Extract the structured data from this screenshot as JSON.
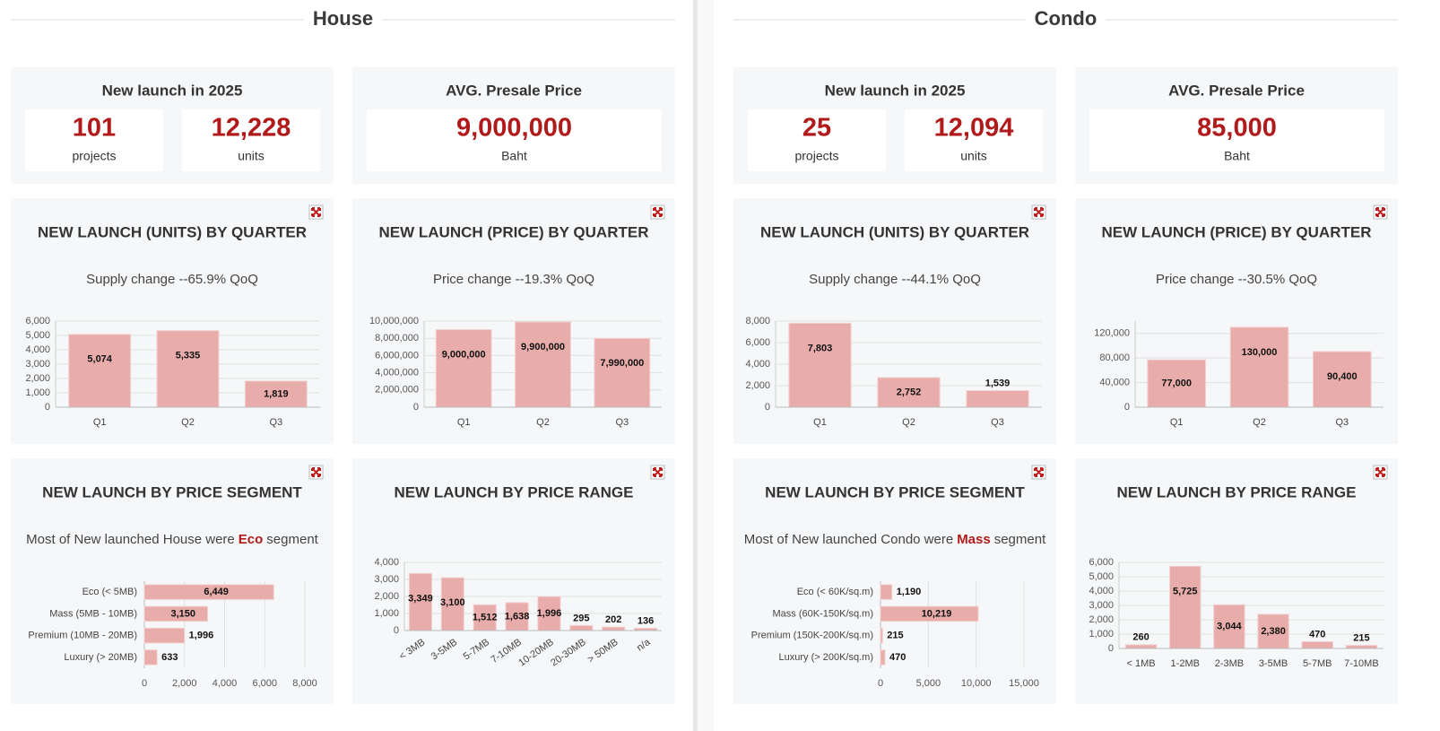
{
  "sections": [
    {
      "title": "House",
      "kpis": [
        {
          "title": "New launch in 2025",
          "items": [
            {
              "value": "101",
              "label": "projects"
            },
            {
              "value": "12,228",
              "label": "units"
            }
          ]
        },
        {
          "title": "AVG. Presale Price",
          "items": [
            {
              "value": "9,000,000",
              "label": "Baht"
            }
          ]
        }
      ]
    },
    {
      "title": "Condo",
      "kpis": [
        {
          "title": "New launch in 2025",
          "items": [
            {
              "value": "25",
              "label": "projects"
            },
            {
              "value": "12,094",
              "label": "units"
            }
          ]
        },
        {
          "title": "AVG. Presale Price",
          "items": [
            {
              "value": "85,000",
              "label": "Baht"
            }
          ]
        }
      ]
    }
  ],
  "chart_data": [
    {
      "type": "bar",
      "title": "NEW LAUNCH (UNITS) BY QUARTER",
      "subtitle": "Supply change --65.9% QoQ",
      "color": "#e8adab",
      "categories": [
        "Q1",
        "Q2",
        "Q3"
      ],
      "values": [
        5074,
        5335,
        1819
      ],
      "value_labels": [
        "5,074",
        "5,335",
        "1,819"
      ],
      "ylim": [
        0,
        6000
      ],
      "yticks": [
        0,
        {
          "value": 1000,
          "label": "1,000"
        },
        {
          "value": 2000,
          "label": "2,000"
        },
        {
          "value": 3000,
          "label": "3,000"
        },
        {
          "value": 4000,
          "label": "4,000"
        },
        {
          "value": 5000,
          "label": "5,000"
        },
        {
          "value": 6000,
          "label": "6,000"
        }
      ],
      "grid": true
    },
    {
      "type": "bar",
      "title": "NEW LAUNCH (PRICE) BY QUARTER",
      "subtitle": "Price change --19.3% QoQ",
      "color": "#e8adab",
      "categories": [
        "Q1",
        "Q2",
        "Q3"
      ],
      "values": [
        9000000,
        9900000,
        7990000
      ],
      "value_labels": [
        "9,000,000",
        "9,900,000",
        "7,990,000"
      ],
      "ylim": [
        0,
        10000000
      ],
      "yticks": [
        0,
        {
          "value": 2000000,
          "label": "2,000,000"
        },
        {
          "value": 4000000,
          "label": "4,000,000"
        },
        {
          "value": 6000000,
          "label": "6,000,000"
        },
        {
          "value": 8000000,
          "label": "8,000,000"
        },
        {
          "value": 10000000,
          "label": "10,000,000"
        }
      ],
      "grid": true
    },
    {
      "type": "hbar",
      "title": "NEW LAUNCH BY PRICE SEGMENT",
      "subtitle": "Most of New launched House were",
      "subtitle_highlight": "Eco",
      "subtitle_end": "segment",
      "color": "#e8adab",
      "categories": [
        "Eco (< 5MB)",
        "Mass (5MB - 10MB)",
        "Premium (10MB - 20MB)",
        "Luxury (> 20MB)"
      ],
      "values": [
        6449,
        3150,
        1996,
        633
      ],
      "value_labels": [
        "6,449",
        "3,150",
        "1,996",
        "633"
      ],
      "xlim": [
        0,
        8000
      ],
      "xticks": [
        0,
        {
          "value": 2000,
          "label": "2,000"
        },
        {
          "value": 4000,
          "label": "4,000"
        },
        {
          "value": 6000,
          "label": "6,000"
        },
        {
          "value": 8000,
          "label": "8,000"
        }
      ],
      "grid": true
    },
    {
      "type": "bar",
      "title": "NEW LAUNCH BY PRICE RANGE",
      "color": "#e8adab",
      "categories": [
        "< 3MB",
        "3-5MB",
        "5-7MB",
        "7-10MB",
        "10-20MB",
        "20-30MB",
        "> 50MB",
        "n/a"
      ],
      "values": [
        3349,
        3100,
        1512,
        1638,
        1996,
        295,
        202,
        136
      ],
      "value_labels": [
        "3,349",
        "3,100",
        "1,512",
        "1,638",
        "1,996",
        "295",
        "202",
        "136"
      ],
      "ylim": [
        0,
        4000
      ],
      "yticks": [
        0,
        {
          "value": 1000,
          "label": "1,000"
        },
        {
          "value": 2000,
          "label": "2,000"
        },
        {
          "value": 3000,
          "label": "3,000"
        },
        {
          "value": 4000,
          "label": "4,000"
        }
      ],
      "grid": true
    },
    {
      "type": "bar",
      "title": "NEW LAUNCH (UNITS) BY QUARTER",
      "subtitle": "Supply change --44.1% QoQ",
      "color": "#e8adab",
      "categories": [
        "Q1",
        "Q2",
        "Q3"
      ],
      "values": [
        7803,
        2752,
        1539
      ],
      "value_labels": [
        "7,803",
        "2,752",
        "1,539"
      ],
      "ylim": [
        0,
        8000
      ],
      "yticks": [
        0,
        {
          "value": 2000,
          "label": "2,000"
        },
        {
          "value": 4000,
          "label": "4,000"
        },
        {
          "value": 6000,
          "label": "6,000"
        },
        {
          "value": 8000,
          "label": "8,000"
        }
      ],
      "grid": true
    },
    {
      "type": "bar",
      "title": "NEW LAUNCH (PRICE) BY QUARTER",
      "subtitle": "Price change --30.5% QoQ",
      "color": "#e8adab",
      "categories": [
        "Q1",
        "Q2",
        "Q3"
      ],
      "values": [
        77000,
        130000,
        90400
      ],
      "value_labels": [
        "77,000",
        "130,000",
        "90,400"
      ],
      "ylim": [
        0,
        140000
      ],
      "yticks": [
        0,
        {
          "value": 40000,
          "label": "40,000"
        },
        {
          "value": 80000,
          "label": "80,000"
        },
        {
          "value": 120000,
          "label": "120,000"
        }
      ],
      "grid": true
    },
    {
      "type": "hbar",
      "title": "NEW LAUNCH BY PRICE SEGMENT",
      "subtitle": "Most of New launched Condo were",
      "subtitle_highlight": "Mass",
      "subtitle_end": "segment",
      "color": "#e8adab",
      "categories": [
        "Eco (< 60K/sq.m)",
        "Mass (60K-150K/sq.m)",
        "Premium (150K-200K/sq.m)",
        "Luxury (> 200K/sq.m)"
      ],
      "values": [
        1190,
        10219,
        215,
        470
      ],
      "value_labels": [
        "1,190",
        "10,219",
        "215",
        "470"
      ],
      "xlim": [
        0,
        15000
      ],
      "xticks": [
        0,
        {
          "value": 5000,
          "label": "5,000"
        },
        {
          "value": 10000,
          "label": "10,000"
        },
        {
          "value": 15000,
          "label": "15,000"
        }
      ],
      "grid": true
    },
    {
      "type": "bar",
      "title": "NEW LAUNCH BY PRICE RANGE",
      "color": "#e8adab",
      "categories": [
        "< 1MB",
        "1-2MB",
        "2-3MB",
        "3-5MB",
        "5-7MB",
        "7-10MB"
      ],
      "values": [
        260,
        5725,
        3044,
        2380,
        470,
        215
      ],
      "value_labels": [
        "260",
        "5,725",
        "3,044",
        "2,380",
        "470",
        "215"
      ],
      "ylim": [
        0,
        6000
      ],
      "yticks": [
        0,
        {
          "value": 1000,
          "label": "1,000"
        },
        {
          "value": 2000,
          "label": "2,000"
        },
        {
          "value": 3000,
          "label": "3,000"
        },
        {
          "value": 4000,
          "label": "4,000"
        },
        {
          "value": 5000,
          "label": "5,000"
        },
        {
          "value": 6000,
          "label": "6,000"
        }
      ],
      "grid": true
    }
  ]
}
